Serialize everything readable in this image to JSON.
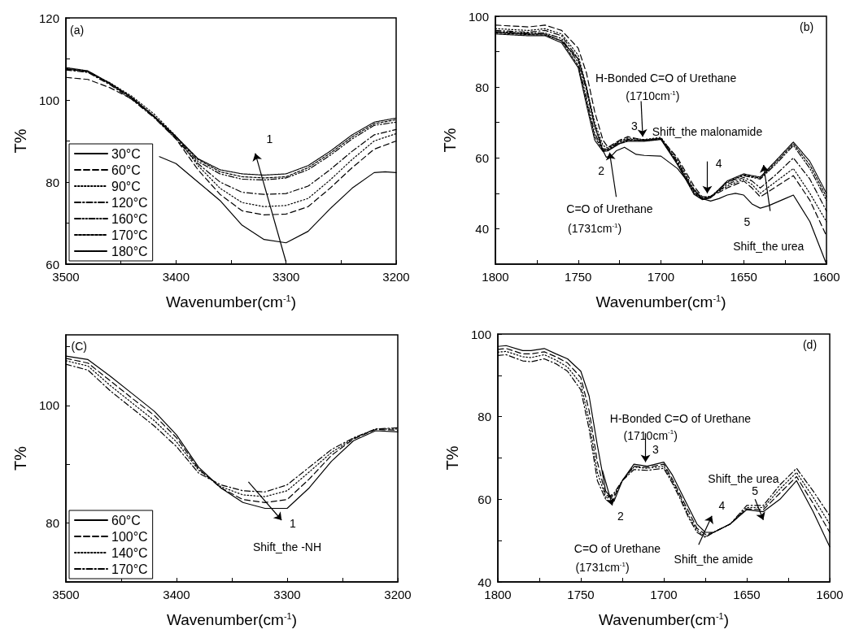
{
  "chart_data": [
    {
      "type": "line",
      "xlabel": "Wavenumber(cm$^{-1}$)",
      "ylabel": "T%",
      "xlim": [
        3500,
        3200
      ],
      "xticks": [
        3500,
        {
          "value": 3450,
          "label": null
        },
        3400,
        {
          "value": 3350,
          "label": null
        },
        3300,
        {
          "value": 3250,
          "label": null
        },
        3200
      ],
      "ylim": [
        60,
        120
      ],
      "yticks": [
        60,
        {
          "value": 70,
          "label": null
        },
        80,
        {
          "value": 90,
          "label": null
        },
        100,
        {
          "value": 110,
          "label": null
        },
        120
      ],
      "legend": "bottom left",
      "annotations": [
        "(a)",
        "1"
      ],
      "series": [
        {
          "name": "30°C",
          "color": "#000000",
          "line_style": "solid",
          "x": [
            3415,
            3400,
            3380,
            3360,
            3340,
            3320,
            3300,
            3280,
            3260,
            3240,
            3220,
            3210,
            3200
          ],
          "values": [
            86.2,
            84.5,
            80,
            75.5,
            69.5,
            66,
            65.2,
            68,
            73.5,
            78.5,
            82.3,
            82.5,
            82.3
          ]
        },
        {
          "name": "60°C",
          "color": "#000000",
          "line_style": "dashed",
          "x": [
            3500,
            3480,
            3460,
            3440,
            3420,
            3400,
            3380,
            3360,
            3340,
            3320,
            3300,
            3280,
            3260,
            3240,
            3220,
            3200
          ],
          "values": [
            105.5,
            105,
            103,
            100.2,
            96,
            90.5,
            83,
            77,
            73,
            72,
            72.2,
            74,
            78.5,
            83.5,
            88,
            90
          ]
        },
        {
          "name": "90°C",
          "color": "#000000",
          "line_style": "dotted",
          "x": [
            3500,
            3480,
            3460,
            3440,
            3420,
            3400,
            3380,
            3360,
            3340,
            3320,
            3300,
            3280,
            3260,
            3240,
            3220,
            3200
          ],
          "values": [
            107.6,
            106.8,
            104.2,
            100.9,
            96.6,
            91.2,
            84,
            78.5,
            75,
            74,
            74.3,
            76,
            80.5,
            85.5,
            90,
            91.8
          ]
        },
        {
          "name": "120°C",
          "color": "#000000",
          "line_style": "dashdot",
          "x": [
            3500,
            3480,
            3460,
            3440,
            3420,
            3400,
            3380,
            3360,
            3340,
            3320,
            3300,
            3280,
            3260,
            3240,
            3220,
            3200
          ],
          "values": [
            107.3,
            106.7,
            103.7,
            100.1,
            95.7,
            90.5,
            84.5,
            80,
            77.5,
            77,
            77.2,
            79,
            83,
            87.5,
            91.5,
            92.8
          ]
        },
        {
          "name": "160°C",
          "color": "#000000",
          "line_style": "dashdotdot",
          "x": [
            3500,
            3480,
            3460,
            3440,
            3420,
            3400,
            3380,
            3360,
            3340,
            3320,
            3300,
            3280,
            3260,
            3240,
            3220,
            3200
          ],
          "values": [
            107.5,
            106.9,
            103.9,
            100.4,
            95.9,
            90.9,
            85,
            82,
            80.7,
            80.5,
            81,
            83,
            86.5,
            90.5,
            93.8,
            94.6
          ]
        },
        {
          "name": "170°C",
          "color": "#000000",
          "line_style": "shortdash",
          "x": [
            3500,
            3480,
            3460,
            3440,
            3420,
            3400,
            3380,
            3360,
            3340,
            3320,
            3300,
            3280,
            3260,
            3240,
            3220,
            3200
          ],
          "values": [
            107.7,
            107,
            104,
            100.5,
            96,
            91,
            85.5,
            82.5,
            81.3,
            81,
            81.3,
            83.5,
            87,
            91,
            94.2,
            95.2
          ]
        },
        {
          "name": "180°C",
          "color": "#000000",
          "line_style": "densedot",
          "x": [
            3500,
            3480,
            3460,
            3440,
            3420,
            3400,
            3380,
            3360,
            3340,
            3320,
            3300,
            3280,
            3260,
            3240,
            3220,
            3200
          ],
          "values": [
            107.9,
            107.1,
            104.1,
            100.6,
            96.1,
            91.1,
            85.7,
            83,
            82,
            81.7,
            82,
            84,
            87.5,
            91.5,
            94.6,
            95.6
          ]
        }
      ]
    },
    {
      "type": "line",
      "xlabel": "Wavenumber(cm$^{-1}$)",
      "ylabel": "T%",
      "xlim": [
        1800,
        1600
      ],
      "xticks": [
        1800,
        {
          "value": 1775,
          "label": null
        },
        1750,
        {
          "value": 1725,
          "label": null
        },
        1700,
        {
          "value": 1675,
          "label": null
        },
        1650,
        {
          "value": 1625,
          "label": null
        },
        1600
      ],
      "ylim": [
        30,
        100
      ],
      "yticks": [
        40,
        {
          "value": 50,
          "label": null
        },
        60,
        {
          "value": 70,
          "label": null
        },
        80,
        {
          "value": 90,
          "label": null
        },
        100
      ],
      "legend": false,
      "annotations": [
        "(b)",
        "H-Bonded C=O of Urethane",
        {
          "text": "(1710cm$^{-1}$)",
          "x": 1711,
          "y": 66
        },
        "3",
        "Shift_the malonamide",
        {
          "text": "4",
          "x": 1672,
          "y": 50
        },
        "2",
        {
          "text": "C=O of Urethane",
          "x": 1731,
          "y": 61.5
        },
        "(1731cm$^{-1}$)",
        "5",
        "Shift_the urea"
      ],
      "series": [
        {
          "color": "#000000",
          "line_style": "solid",
          "x": [
            1800,
            1780,
            1770,
            1760,
            1750,
            1745,
            1740,
            1735,
            1733,
            1730,
            1727,
            1722,
            1715,
            1710,
            1700,
            1690,
            1680,
            1675,
            1670,
            1665,
            1660,
            1655,
            1650,
            1645,
            1640,
            1635,
            1625,
            1620,
            1610,
            1600
          ],
          "values": [
            95.5,
            95,
            95,
            93,
            88,
            80,
            69,
            62,
            60.2,
            60.5,
            62,
            63,
            61,
            60.7,
            60.5,
            57,
            51,
            48.5,
            47.8,
            48.5,
            49.5,
            50,
            49.5,
            47,
            45.8,
            46.5,
            48.5,
            49.5,
            42,
            30
          ]
        },
        {
          "color": "#000000",
          "line_style": "dashed",
          "x": [
            1800,
            1780,
            1770,
            1760,
            1750,
            1745,
            1740,
            1735,
            1732,
            1725,
            1720,
            1710,
            1700,
            1690,
            1680,
            1675,
            1670,
            1660,
            1650,
            1645,
            1640,
            1630,
            1620,
            1610,
            1600
          ],
          "values": [
            97.5,
            97,
            97.5,
            96,
            91,
            84,
            73,
            65,
            63,
            65,
            66,
            65,
            65.5,
            60,
            52,
            49,
            49,
            51.5,
            53.5,
            51.5,
            49,
            52,
            55,
            48,
            38
          ]
        },
        {
          "color": "#000000",
          "line_style": "dotted",
          "x": [
            1800,
            1780,
            1770,
            1760,
            1750,
            1745,
            1740,
            1735,
            1732,
            1725,
            1720,
            1710,
            1700,
            1690,
            1680,
            1675,
            1670,
            1660,
            1650,
            1645,
            1640,
            1630,
            1620,
            1610,
            1600
          ],
          "values": [
            96.5,
            96,
            96.5,
            95,
            89,
            80,
            70,
            63.5,
            62.8,
            64.8,
            65.6,
            65.2,
            65.8,
            59.4,
            51.2,
            48.7,
            49.2,
            52,
            54,
            52.5,
            50,
            53.5,
            57,
            50,
            42
          ]
        },
        {
          "color": "#000000",
          "line_style": "dashdot",
          "x": [
            1800,
            1780,
            1770,
            1760,
            1750,
            1745,
            1740,
            1735,
            1732,
            1725,
            1720,
            1710,
            1700,
            1690,
            1680,
            1675,
            1670,
            1660,
            1650,
            1645,
            1640,
            1630,
            1620,
            1610,
            1600
          ],
          "values": [
            96,
            95.5,
            96,
            94.5,
            88,
            79,
            69,
            62.6,
            62.4,
            64.3,
            65.3,
            64.8,
            65.3,
            59,
            50.6,
            48.4,
            48.9,
            52.5,
            54.5,
            53.5,
            51.5,
            55.5,
            60,
            54,
            45
          ]
        },
        {
          "color": "#000000",
          "line_style": "dashdotdot",
          "x": [
            1800,
            1780,
            1770,
            1760,
            1750,
            1745,
            1740,
            1735,
            1732,
            1725,
            1720,
            1710,
            1700,
            1690,
            1680,
            1675,
            1670,
            1660,
            1650,
            1645,
            1640,
            1630,
            1620,
            1610,
            1600
          ],
          "values": [
            95.7,
            95.2,
            95.3,
            93.7,
            87,
            77,
            67,
            62.2,
            62.6,
            64.6,
            65.1,
            65.1,
            65.5,
            58.6,
            50.2,
            48.6,
            49.1,
            53,
            55,
            54.5,
            54,
            58.5,
            63.5,
            57,
            48
          ]
        },
        {
          "color": "#000000",
          "line_style": "shortdash",
          "x": [
            1800,
            1780,
            1770,
            1760,
            1750,
            1745,
            1740,
            1735,
            1732,
            1725,
            1720,
            1710,
            1700,
            1690,
            1680,
            1675,
            1670,
            1660,
            1650,
            1645,
            1640,
            1630,
            1620,
            1610,
            1600
          ],
          "values": [
            95.3,
            94.8,
            94.7,
            93.1,
            86,
            76,
            66,
            62,
            62.2,
            64.1,
            64.9,
            64.9,
            65.4,
            58.3,
            49.9,
            48.3,
            48.8,
            53.2,
            55.2,
            54.7,
            54.3,
            59,
            64,
            58,
            49
          ]
        },
        {
          "color": "#000000",
          "line_style": "densedot",
          "x": [
            1800,
            1780,
            1770,
            1760,
            1750,
            1745,
            1740,
            1735,
            1732,
            1725,
            1720,
            1710,
            1700,
            1690,
            1680,
            1675,
            1670,
            1660,
            1650,
            1645,
            1640,
            1630,
            1620,
            1610,
            1600
          ],
          "values": [
            95,
            94.5,
            94.5,
            92.5,
            85.5,
            75,
            65,
            61.8,
            62,
            64,
            64.7,
            64.7,
            65.2,
            58.1,
            49.7,
            48.2,
            48.7,
            53.5,
            55.5,
            55,
            54.6,
            59.5,
            64.5,
            59,
            50
          ]
        }
      ]
    },
    {
      "type": "line",
      "xlabel": "Wavenumber(cm$^{-1}$)",
      "ylabel": "T%",
      "xlim": [
        3500,
        3200
      ],
      "xticks": [
        3500,
        {
          "value": 3450,
          "label": null
        },
        3400,
        {
          "value": 3350,
          "label": null
        },
        3300,
        {
          "value": 3250,
          "label": null
        },
        3200
      ],
      "ylim": [
        70,
        112
      ],
      "yticks": [
        {
          "value": 70,
          "label": null
        },
        80,
        {
          "value": 90,
          "label": null
        },
        100,
        {
          "value": 110,
          "label": null
        }
      ],
      "legend": "bottom left",
      "annotations": [
        "(C)",
        "1",
        "Shift_the -NH"
      ],
      "series": [
        {
          "name": "60°C",
          "color": "#000000",
          "line_style": "solid",
          "x": [
            3500,
            3480,
            3460,
            3440,
            3420,
            3400,
            3380,
            3360,
            3340,
            3320,
            3300,
            3280,
            3260,
            3240,
            3220,
            3200
          ],
          "values": [
            108.4,
            107.8,
            105,
            102,
            99,
            95,
            89.5,
            86,
            83.5,
            82.5,
            82.5,
            86,
            90.5,
            94,
            95.7,
            95.5
          ]
        },
        {
          "name": "100°C",
          "color": "#000000",
          "line_style": "dashed",
          "x": [
            3500,
            3480,
            3460,
            3440,
            3420,
            3400,
            3380,
            3360,
            3340,
            3320,
            3300,
            3280,
            3260,
            3240,
            3220,
            3200
          ],
          "values": [
            108,
            107.2,
            104.2,
            101.2,
            98.3,
            94.5,
            89.2,
            86,
            84,
            83.5,
            84,
            87.5,
            91.5,
            94.3,
            95.9,
            95.8
          ]
        },
        {
          "name": "140°C",
          "color": "#000000",
          "line_style": "dotted",
          "x": [
            3500,
            3480,
            3460,
            3440,
            3420,
            3400,
            3380,
            3360,
            3340,
            3320,
            3300,
            3280,
            3260,
            3240,
            3220,
            3200
          ],
          "values": [
            107.6,
            106.7,
            103.4,
            100.4,
            97.4,
            93.8,
            89,
            86.2,
            84.8,
            84.5,
            85.5,
            88.7,
            92,
            94.4,
            96,
            96
          ]
        },
        {
          "name": "170°C",
          "color": "#000000",
          "line_style": "dashdot",
          "x": [
            3500,
            3480,
            3460,
            3440,
            3420,
            3400,
            3380,
            3360,
            3340,
            3320,
            3300,
            3280,
            3260,
            3240,
            3220,
            3200
          ],
          "values": [
            107,
            106,
            102.5,
            99.5,
            96.5,
            93,
            88.5,
            86.5,
            85.5,
            85.3,
            86.5,
            89.5,
            92.5,
            94.5,
            96,
            96.2
          ]
        }
      ]
    },
    {
      "type": "line",
      "xlabel": "Wavenumber(cm$^{-1}$)",
      "ylabel": "T%",
      "xlim": [
        1800,
        1600
      ],
      "xticks": [
        1800,
        {
          "value": 1775,
          "label": null
        },
        1750,
        {
          "value": 1725,
          "label": null
        },
        1700,
        {
          "value": 1675,
          "label": null
        },
        1650,
        {
          "value": 1625,
          "label": null
        },
        1600
      ],
      "ylim": [
        40,
        100
      ],
      "yticks": [
        40,
        {
          "value": 50,
          "label": null
        },
        60,
        {
          "value": 70,
          "label": null
        },
        80,
        {
          "value": 90,
          "label": null
        },
        100
      ],
      "legend": false,
      "annotations": [
        "(d)",
        "H-Bonded C=O of Urethane",
        {
          "text": "(1710cm$^{-1}$)",
          "x": 1711,
          "y": 69
        },
        "3",
        {
          "text": "2",
          "x": 1731,
          "y": 58.5
        },
        "C=O of Urethane",
        "(1731cm$^{-1}$)",
        "4",
        "Shift_the amide",
        "Shift_the urea",
        "5"
      ],
      "series": [
        {
          "color": "#000000",
          "line_style": "solid",
          "x": [
            1800,
            1795,
            1785,
            1780,
            1772,
            1765,
            1758,
            1750,
            1745,
            1740,
            1735,
            1730,
            1725,
            1718,
            1710,
            1700,
            1695,
            1690,
            1685,
            1680,
            1675,
            1670,
            1660,
            1650,
            1640,
            1630,
            1620,
            1610,
            1600
          ],
          "values": [
            97,
            97.2,
            96,
            96,
            96.5,
            95.2,
            94,
            91,
            85,
            73,
            62,
            59.5,
            64.5,
            68.5,
            68,
            69,
            66,
            62,
            58,
            54,
            52,
            52,
            54,
            57.5,
            57,
            60,
            64.5,
            57,
            48.5
          ]
        },
        {
          "color": "#000000",
          "line_style": "dashed",
          "x": [
            1800,
            1795,
            1785,
            1780,
            1772,
            1765,
            1758,
            1750,
            1745,
            1740,
            1735,
            1730,
            1725,
            1718,
            1710,
            1700,
            1695,
            1690,
            1685,
            1680,
            1675,
            1670,
            1660,
            1650,
            1640,
            1630,
            1620,
            1610,
            1600
          ],
          "values": [
            96.3,
            96.5,
            95.2,
            95.2,
            95.7,
            94.5,
            93,
            89.5,
            81.5,
            69,
            61,
            60.5,
            64.5,
            68,
            67.7,
            68.5,
            65,
            61,
            57,
            53,
            51.5,
            52,
            54,
            57.7,
            57.5,
            61.5,
            65.5,
            59,
            52
          ]
        },
        {
          "color": "#000000",
          "line_style": "dotted",
          "x": [
            1800,
            1795,
            1785,
            1780,
            1772,
            1765,
            1758,
            1750,
            1745,
            1740,
            1735,
            1730,
            1725,
            1718,
            1710,
            1700,
            1695,
            1690,
            1685,
            1680,
            1675,
            1670,
            1660,
            1650,
            1640,
            1630,
            1620,
            1610,
            1600
          ],
          "values": [
            95.6,
            95.8,
            94.5,
            94.3,
            95,
            93.7,
            92,
            88,
            79,
            66.5,
            60.5,
            61,
            64.5,
            67.8,
            67.5,
            68,
            64.5,
            60.5,
            56,
            52.5,
            51,
            52,
            54,
            58,
            58,
            62.5,
            66.5,
            60.5,
            54
          ]
        },
        {
          "color": "#000000",
          "line_style": "dashdot",
          "x": [
            1800,
            1795,
            1785,
            1780,
            1772,
            1765,
            1758,
            1750,
            1745,
            1740,
            1735,
            1730,
            1725,
            1718,
            1710,
            1700,
            1695,
            1690,
            1685,
            1680,
            1675,
            1670,
            1660,
            1650,
            1640,
            1630,
            1620,
            1610,
            1600
          ],
          "values": [
            94.8,
            95,
            93.5,
            93.3,
            94,
            92.8,
            91,
            86.5,
            77,
            64.5,
            60,
            61.5,
            64.5,
            67.2,
            67,
            67.5,
            64,
            60,
            55.5,
            52,
            50.8,
            52,
            54,
            58.5,
            58.5,
            63.5,
            67.5,
            62,
            56
          ]
        }
      ]
    }
  ]
}
